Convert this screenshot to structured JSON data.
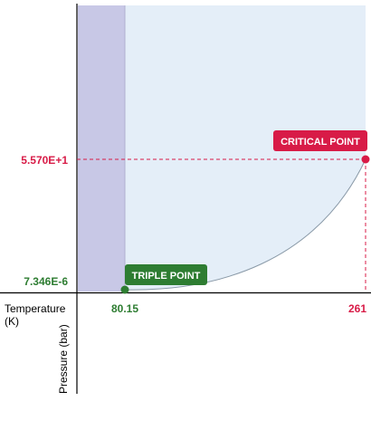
{
  "chart_data": {
    "type": "area",
    "title": "",
    "xlabel": "Temperature\n(K)",
    "ylabel": "Pressure (bar)",
    "triple_point": {
      "label": "TRIPLE POINT",
      "temperature": 80.15,
      "pressure": 7.346e-06,
      "temperature_label": "80.15",
      "pressure_label": "7.346E-6"
    },
    "critical_point": {
      "label": "CRITICAL POINT",
      "temperature": 261,
      "pressure": 55.7,
      "temperature_label": "261",
      "pressure_label": "5.570E+1"
    },
    "solid_region_boundary_temperature": 80.15,
    "grid": false
  },
  "colors": {
    "axis": "#000000",
    "solid_region": "#c8c8e6",
    "liquid_region": "#e4eef8",
    "triple": "#2e7d32",
    "critical": "#d81b47"
  }
}
